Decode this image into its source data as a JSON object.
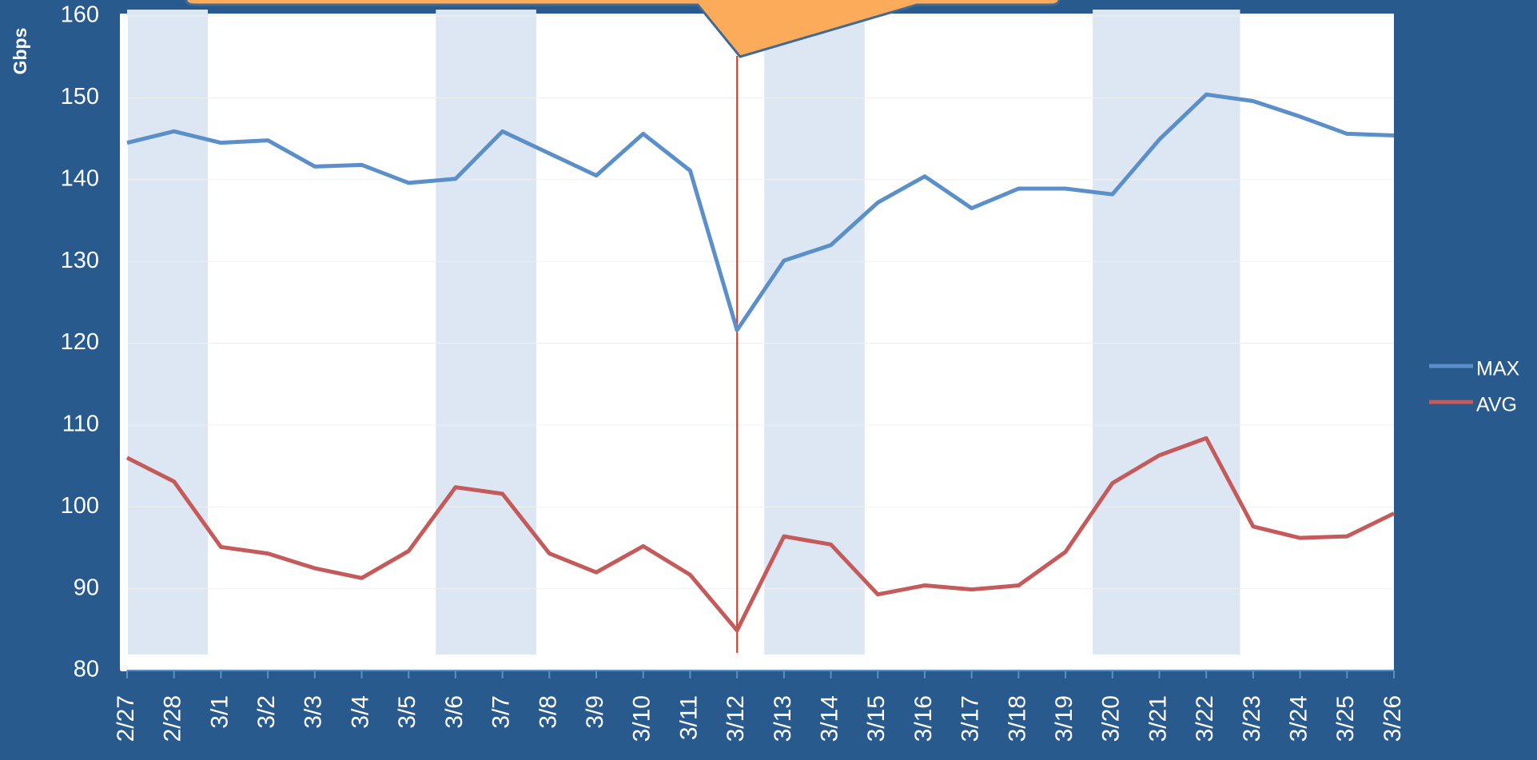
{
  "chart_data": {
    "type": "line",
    "y_label": "Gbps",
    "categories": [
      "2/27",
      "2/28",
      "3/1",
      "3/2",
      "3/3",
      "3/4",
      "3/5",
      "3/6",
      "3/7",
      "3/8",
      "3/9",
      "3/10",
      "3/11",
      "3/12",
      "3/13",
      "3/14",
      "3/15",
      "3/16",
      "3/17",
      "3/18",
      "3/19",
      "3/20",
      "3/21",
      "3/22",
      "3/23",
      "3/24",
      "3/25",
      "3/26"
    ],
    "series": [
      {
        "name": "MAX",
        "color": "#5b8fc9",
        "values": [
          144.5,
          145.9,
          144.5,
          144.8,
          141.6,
          141.8,
          139.6,
          140.1,
          145.9,
          143.2,
          140.5,
          145.6,
          141.1,
          121.6,
          130.1,
          132.0,
          137.2,
          140.4,
          136.5,
          138.9,
          138.9,
          138.2,
          144.9,
          150.4,
          149.6,
          147.7,
          145.6,
          145.4
        ]
      },
      {
        "name": "AVG",
        "color": "#c55a5a",
        "values": [
          106.0,
          103.1,
          95.1,
          94.3,
          92.5,
          91.3,
          94.6,
          102.4,
          101.6,
          94.3,
          92.0,
          95.2,
          91.7,
          84.9,
          96.4,
          95.4,
          89.3,
          90.4,
          89.9,
          90.4,
          94.5,
          102.9,
          106.3,
          108.4,
          97.6,
          96.2,
          96.4,
          99.2
        ]
      }
    ],
    "ylim": [
      80,
      160
    ],
    "yticks": [
      80,
      90,
      100,
      110,
      120,
      130,
      140,
      150,
      160
    ],
    "grid": true,
    "legend": "right"
  }
}
